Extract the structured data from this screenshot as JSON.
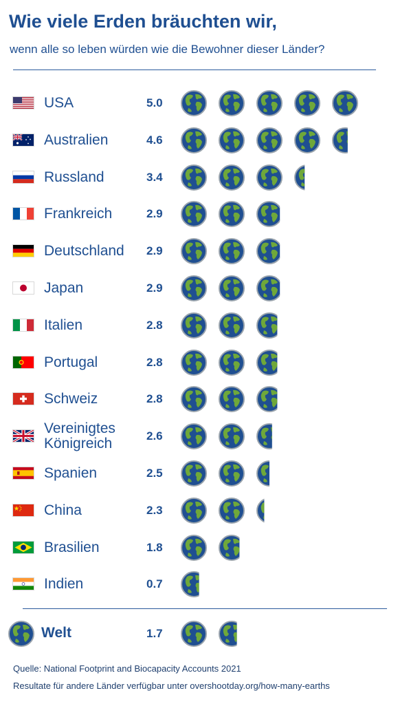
{
  "title": "Wie viele Erden bräuchten wir,",
  "subtitle": "wenn alle so leben würden wie die Bewohner dieser Länder?",
  "colors": {
    "text": "#1f4f91",
    "ocean": "#1f4f91",
    "land": "#6fa83a",
    "rim": "#9aa4ad"
  },
  "chart_data": {
    "type": "bar",
    "categories": [
      "USA",
      "Australien",
      "Russland",
      "Frankreich",
      "Deutschland",
      "Japan",
      "Italien",
      "Portugal",
      "Schweiz",
      "Vereinigtes\nKönigreich",
      "Spanien",
      "China",
      "Brasilien",
      "Indien"
    ],
    "values": [
      5.0,
      4.6,
      3.4,
      2.9,
      2.9,
      2.9,
      2.8,
      2.8,
      2.8,
      2.6,
      2.5,
      2.3,
      1.8,
      0.7
    ],
    "value_labels": [
      "5.0",
      "4.6",
      "3.4",
      "2.9",
      "2.9",
      "2.9",
      "2.8",
      "2.8",
      "2.8",
      "2.6",
      "2.5",
      "2.3",
      "1.8",
      "0.7"
    ],
    "flags": [
      "us",
      "au",
      "ru",
      "fr",
      "de",
      "jp",
      "it",
      "pt",
      "ch",
      "gb",
      "es",
      "cn",
      "br",
      "in"
    ],
    "unit_icon": "earth-icon",
    "world": {
      "label": "Welt",
      "value": 1.7,
      "value_label": "1.7"
    }
  },
  "source": {
    "line1": "Quelle: National Footprint and Biocapacity Accounts 2021",
    "line2": "Resultate für andere Länder verfügbar unter overshootday.org/how-many-earths"
  }
}
